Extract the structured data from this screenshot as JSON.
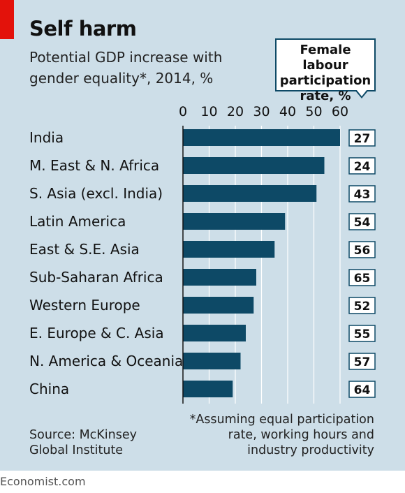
{
  "header": {
    "title": "Self harm",
    "subtitle_line1": "Potential GDP increase with",
    "subtitle_line2": "gender equality*, 2014, %",
    "callout_line1": "Female labour",
    "callout_line2": "participation",
    "callout_line3": "rate, %"
  },
  "colors": {
    "bar": "#0d4966",
    "panel": "#cddee8",
    "accent_red": "#e3120b"
  },
  "chart_data": {
    "type": "bar",
    "orientation": "horizontal",
    "xlim": [
      0,
      60
    ],
    "ticks": [
      0,
      10,
      20,
      30,
      40,
      50,
      60
    ],
    "categories": [
      "India",
      "M. East & N. Africa",
      "S. Asia (excl. India)",
      "Latin America",
      "East & S.E. Asia",
      "Sub-Saharan Africa",
      "Western Europe",
      "E. Europe & C. Asia",
      "N. America & Oceania",
      "China"
    ],
    "values": [
      60,
      54,
      51,
      39,
      35,
      28,
      27,
      24,
      22,
      19
    ],
    "female_participation": [
      27,
      24,
      43,
      54,
      56,
      65,
      52,
      55,
      57,
      64
    ]
  },
  "footer": {
    "source_line1": "Source: McKinsey",
    "source_line2": "Global Institute",
    "note_line1": "*Assuming equal participation",
    "note_line2": "rate, working hours and",
    "note_line3": "industry productivity",
    "brand": "Economist.com"
  }
}
